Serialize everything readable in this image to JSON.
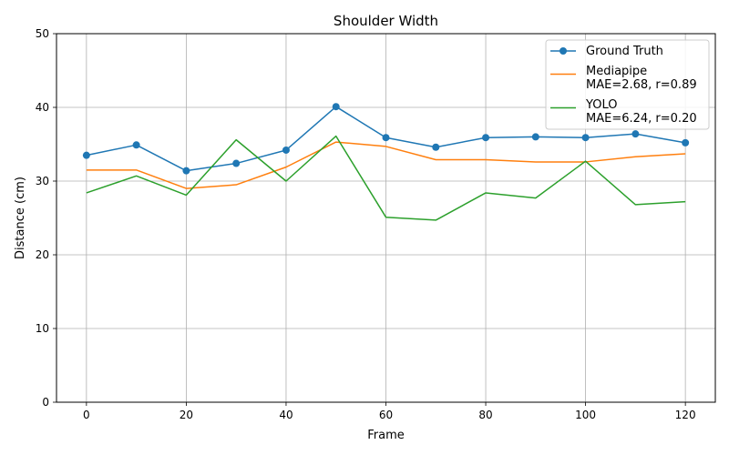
{
  "chart_data": {
    "type": "line",
    "title": "Shoulder Width",
    "xlabel": "Frame",
    "ylabel": "Distance (cm)",
    "xlim": [
      -6,
      126
    ],
    "ylim": [
      0,
      50
    ],
    "xticks": [
      0,
      20,
      40,
      60,
      80,
      100,
      120
    ],
    "yticks": [
      0,
      10,
      20,
      30,
      40,
      50
    ],
    "grid": true,
    "legend_position": "top-right",
    "x": [
      0,
      10,
      20,
      30,
      40,
      50,
      60,
      70,
      80,
      90,
      100,
      110,
      120
    ],
    "series": [
      {
        "name": "Ground Truth",
        "legend_lines": [
          "Ground Truth"
        ],
        "color": "#1f77b4",
        "marker": "circle",
        "values": [
          33.5,
          34.9,
          31.4,
          32.4,
          34.2,
          40.1,
          35.9,
          34.6,
          35.9,
          36.0,
          35.9,
          36.4,
          35.2
        ]
      },
      {
        "name": "Mediapipe MAE=2.68, r=0.89",
        "legend_lines": [
          "Mediapipe",
          "MAE=2.68, r=0.89"
        ],
        "color": "#ff7f0e",
        "marker": "none",
        "values": [
          31.5,
          31.5,
          29.0,
          29.5,
          31.9,
          35.3,
          34.7,
          32.9,
          32.9,
          32.6,
          32.6,
          33.3,
          33.7
        ]
      },
      {
        "name": "YOLO MAE=6.24, r=0.20",
        "legend_lines": [
          "YOLO",
          "MAE=6.24, r=0.20"
        ],
        "color": "#2ca02c",
        "marker": "none",
        "values": [
          28.4,
          30.7,
          28.1,
          35.6,
          30.0,
          36.1,
          25.1,
          24.7,
          28.4,
          27.7,
          32.7,
          26.8,
          27.2
        ]
      }
    ]
  }
}
